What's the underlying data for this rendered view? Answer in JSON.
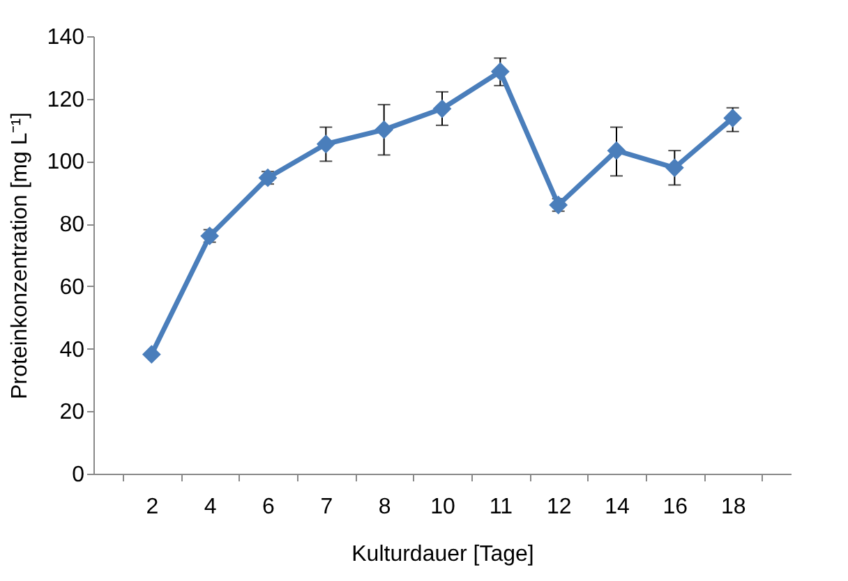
{
  "chart_data": {
    "type": "line",
    "xlabel": "Kulturdauer [Tage]",
    "ylabel": "Proteinkonzentration [mg L⁻¹]",
    "categories": [
      "2",
      "4",
      "6",
      "7",
      "8",
      "10",
      "11",
      "12",
      "14",
      "16",
      "18"
    ],
    "series": [
      {
        "color": "#4a7ebb",
        "values": [
          38.2,
          76.1,
          94.7,
          105.5,
          110.1,
          116.8,
          128.7,
          86,
          103.4,
          97.9,
          113.8
        ],
        "errors": [
          null,
          2,
          2,
          [
            100,
            110.9
          ],
          [
            102,
            118.1
          ],
          [
            111.5,
            122.2
          ],
          [
            124.2,
            133
          ],
          2,
          [
            95.3,
            110.9
          ],
          [
            92.4,
            103.4
          ],
          [
            109.5,
            117.1
          ]
        ]
      }
    ],
    "ylim": [
      0,
      140
    ],
    "yticks": [
      0,
      20,
      40,
      60,
      80,
      100,
      120,
      140
    ],
    "grid": false,
    "marker": "diamond",
    "line_style": "solid"
  }
}
